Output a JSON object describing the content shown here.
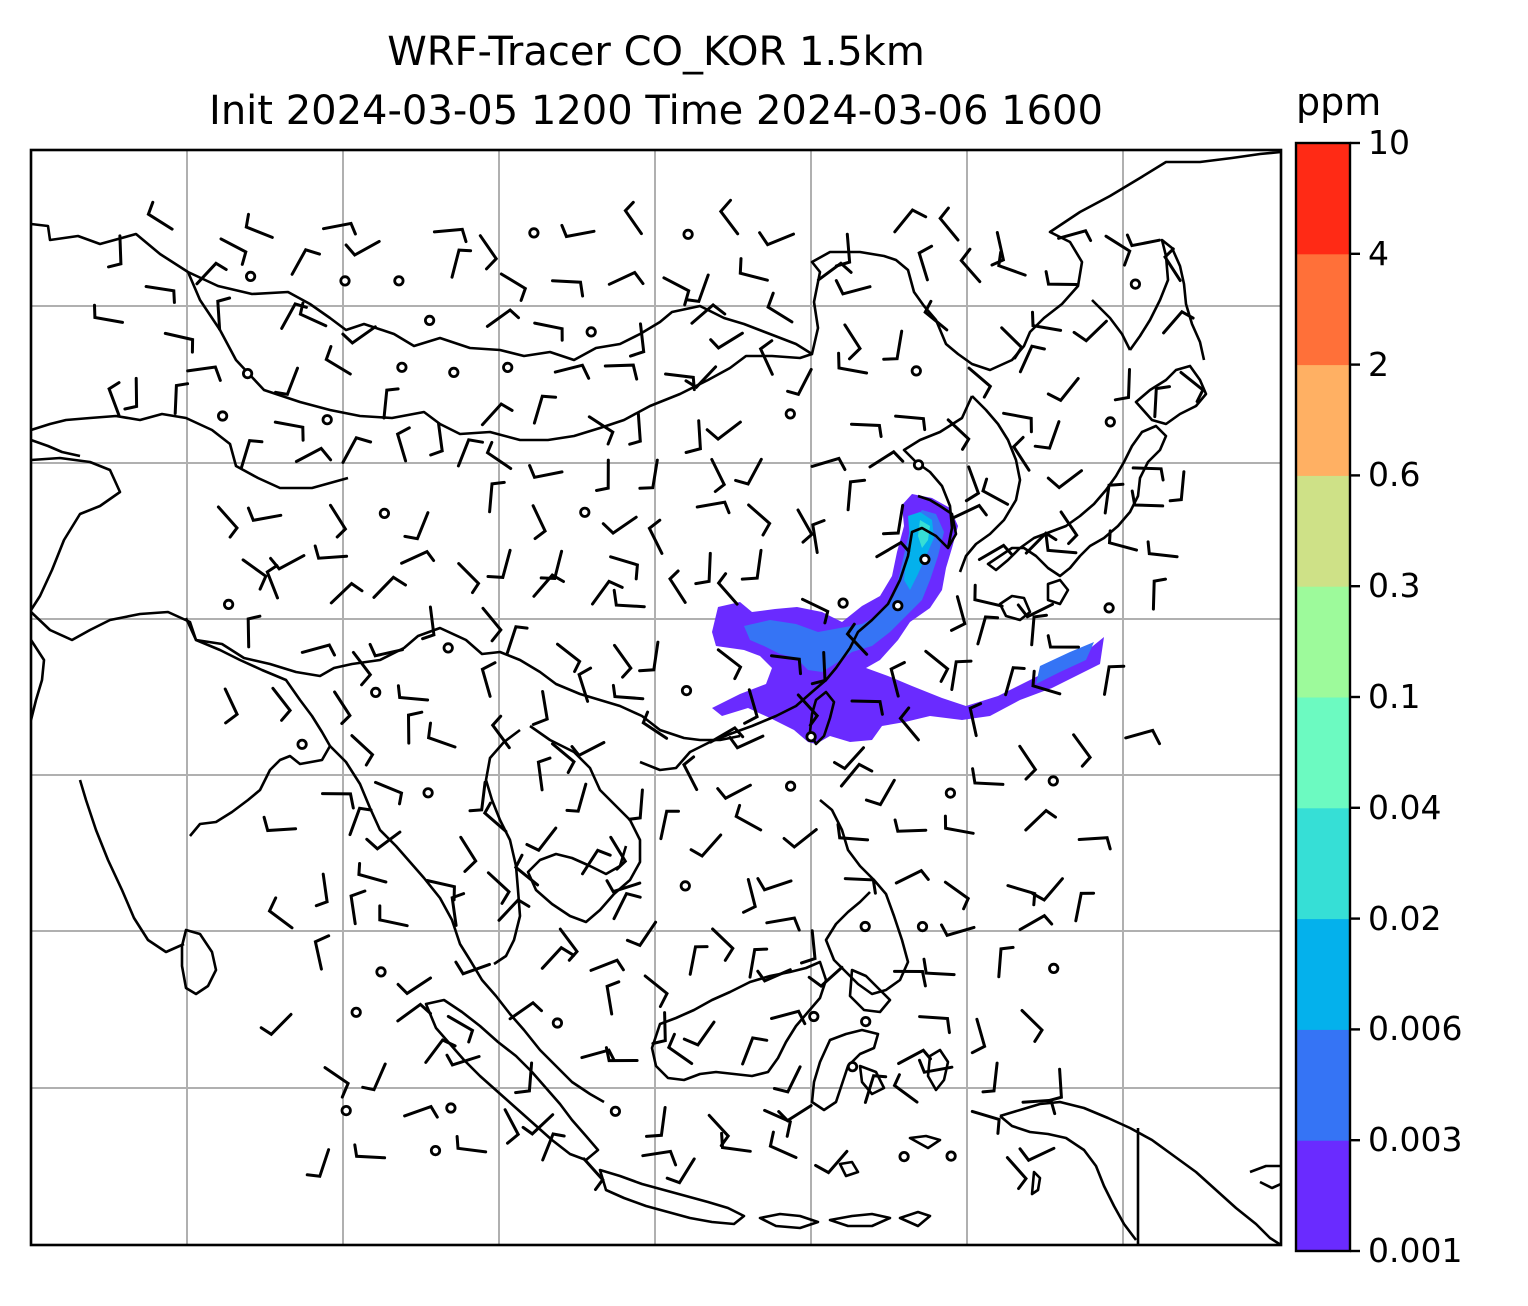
{
  "title": {
    "line1": "WRF-Tracer CO_KOR 1.5km",
    "line2": "Init 2024-03-05 1200 Time 2024-03-06 1600"
  },
  "colorbar": {
    "unit": "ppm",
    "levels": [
      "0.001",
      "0.003",
      "0.006",
      "0.02",
      "0.04",
      "0.1",
      "0.3",
      "0.6",
      "2",
      "4",
      "10"
    ],
    "colors": [
      "#6a2bff",
      "#3574f5",
      "#04b1ec",
      "#36dfd6",
      "#6cfac1",
      "#9dfa9b",
      "#cee187",
      "#ffb063",
      "#ff7039",
      "#ff2a15"
    ]
  },
  "map": {
    "gridlines": true,
    "grid_color": "#b0b0b0",
    "coastline_color": "#000000",
    "plume_colors": [
      "#6a2bff",
      "#3574f5",
      "#04b1ec",
      "#36dfd6"
    ]
  }
}
